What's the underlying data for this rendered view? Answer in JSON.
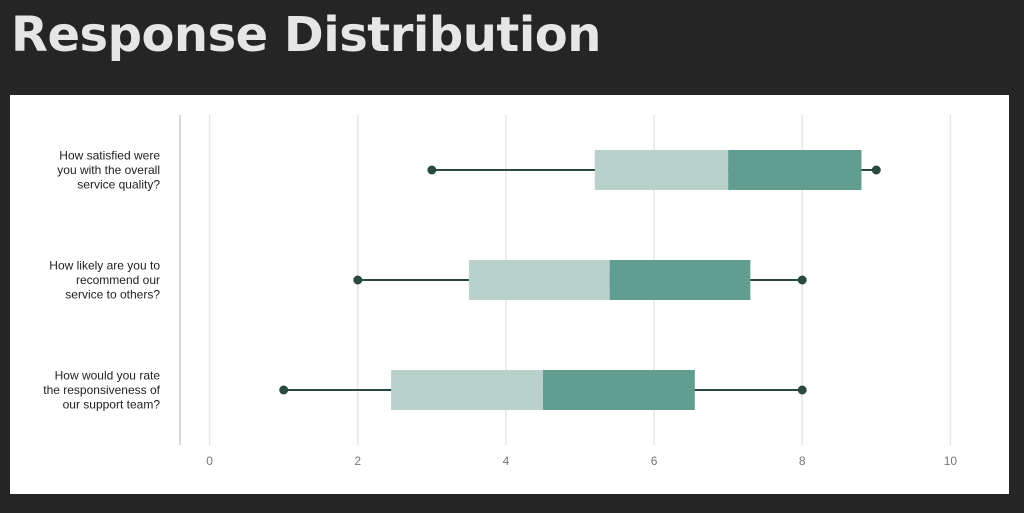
{
  "page": {
    "title": "Response Distribution"
  },
  "chart_data": {
    "type": "box",
    "orientation": "horizontal",
    "title": "Response Distribution",
    "xlabel": "",
    "ylabel": "",
    "xlim": [
      -0.4,
      10.4
    ],
    "xticks": [
      0,
      2,
      4,
      6,
      8,
      10
    ],
    "grid": true,
    "colors": {
      "lower_box": "#b8d2cb",
      "upper_box": "#629e8f",
      "whisker": "#2a4a40",
      "grid": "#e8e8e8",
      "axis": "#d8d8d8"
    },
    "categories": [
      {
        "label_lines": [
          "How satisfied were",
          "you with the overall",
          "service quality?"
        ],
        "min": 3,
        "q1": 5.2,
        "median": 7,
        "q3": 8.8,
        "max": 9
      },
      {
        "label_lines": [
          "How likely are you to",
          "recommend our",
          "service to others?"
        ],
        "min": 2,
        "q1": 3.5,
        "median": 5.4,
        "q3": 7.3,
        "max": 8
      },
      {
        "label_lines": [
          "How would you rate",
          "the responsiveness of",
          "our support team?"
        ],
        "min": 1,
        "q1": 2.45,
        "median": 4.5,
        "q3": 6.55,
        "max": 8
      }
    ]
  }
}
